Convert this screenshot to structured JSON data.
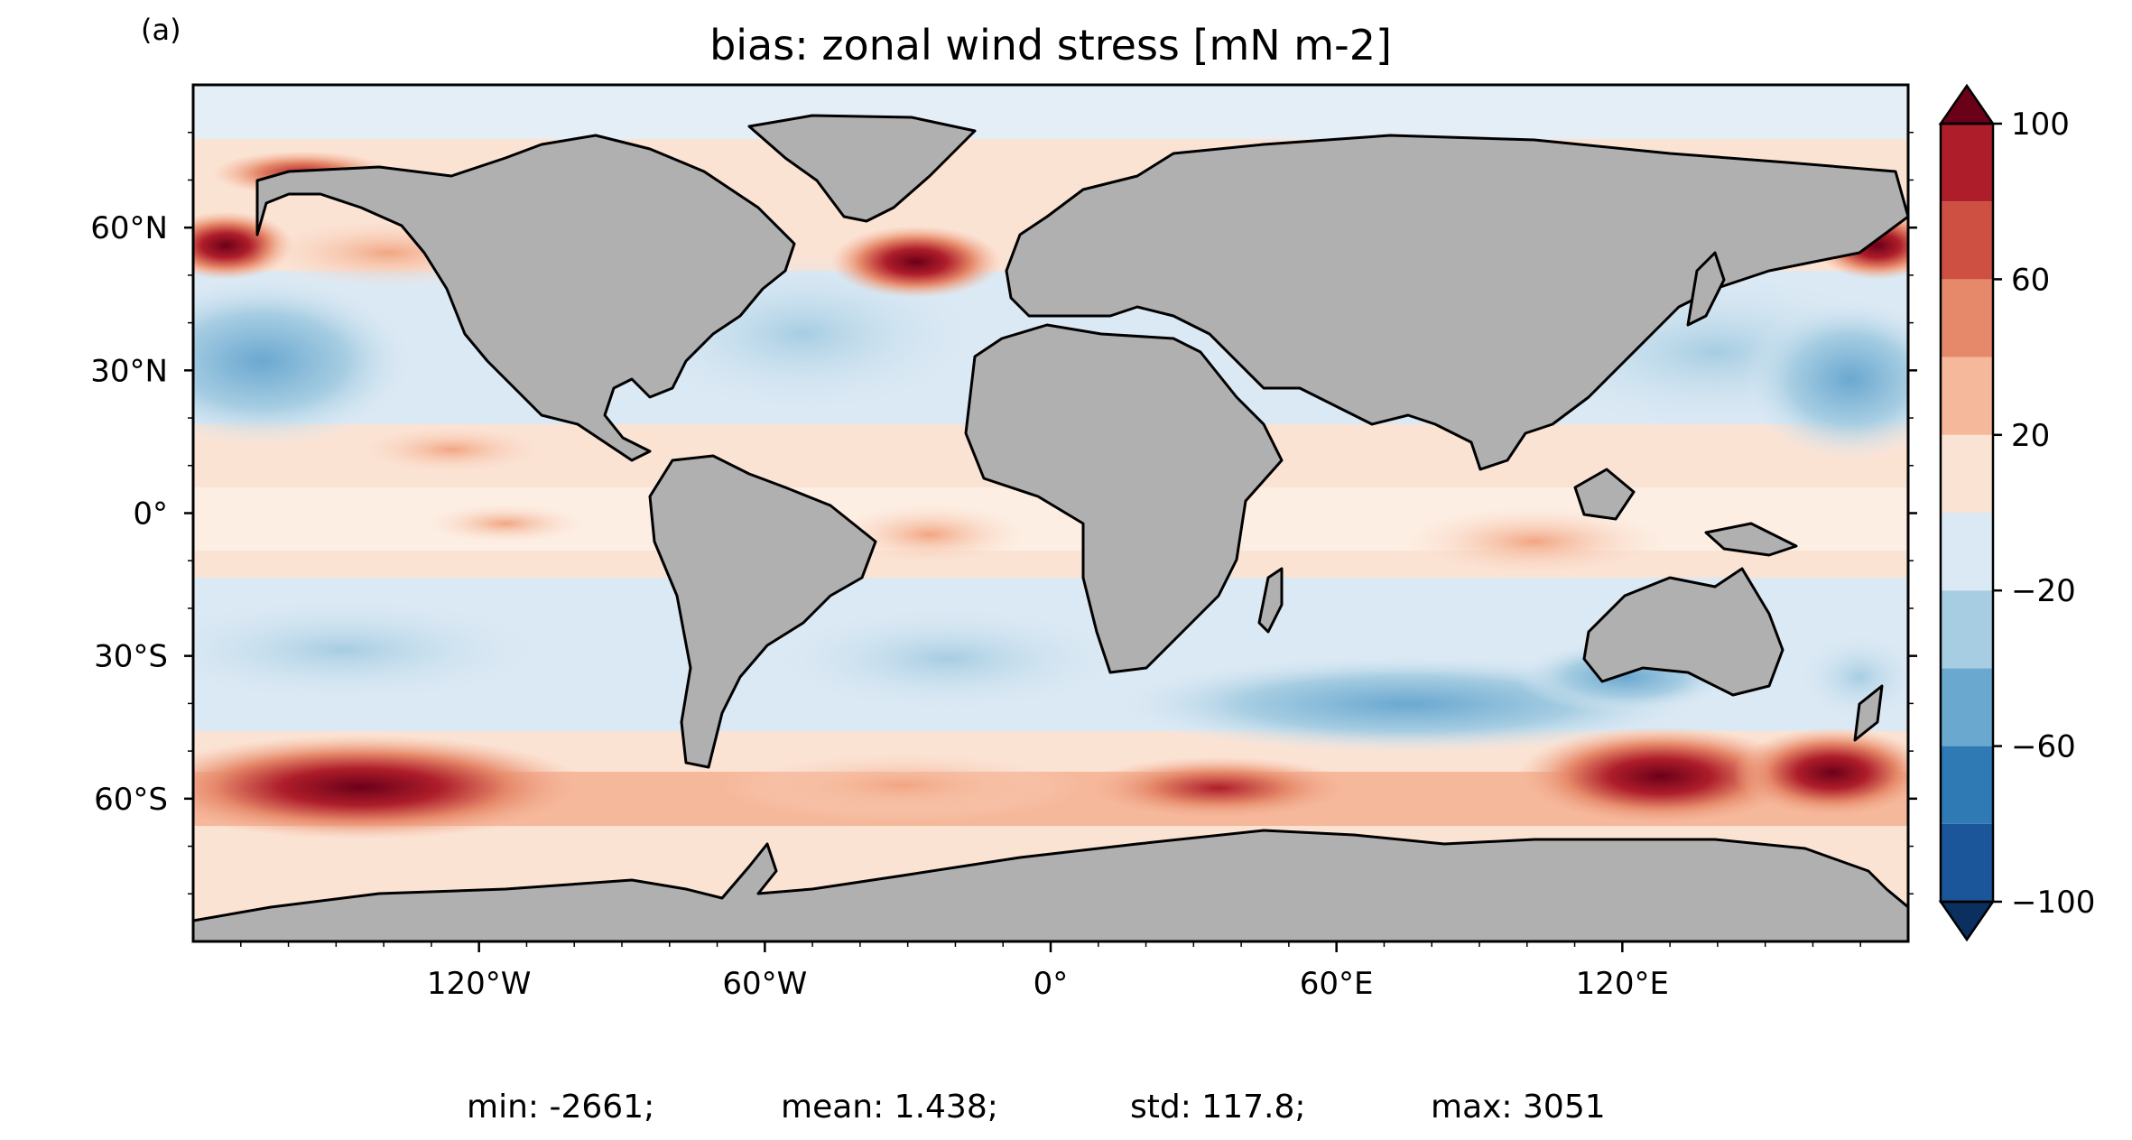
{
  "panel_label": "(a)",
  "title": "bias: zonal wind stress [mN m-2]",
  "stats": {
    "min": "min: -2661;",
    "mean": "mean: 1.438;",
    "std": "std: 117.8;",
    "max": "max: 3051"
  },
  "lat_ticks": [
    {
      "value": 60,
      "label": "60°N"
    },
    {
      "value": 30,
      "label": "30°N"
    },
    {
      "value": 0,
      "label": "0°"
    },
    {
      "value": -30,
      "label": "30°S"
    },
    {
      "value": -60,
      "label": "60°S"
    }
  ],
  "lon_ticks": [
    {
      "value": -120,
      "label": "120°W"
    },
    {
      "value": -60,
      "label": "60°W"
    },
    {
      "value": 0,
      "label": "0°"
    },
    {
      "value": 60,
      "label": "60°E"
    },
    {
      "value": 120,
      "label": "120°E"
    }
  ],
  "colorbar": {
    "levels": [
      -100,
      -80,
      -60,
      -40,
      -20,
      0,
      20,
      40,
      60,
      80,
      100
    ],
    "tick_labels": [
      {
        "value": 100,
        "label": "100"
      },
      {
        "value": 60,
        "label": "60"
      },
      {
        "value": 20,
        "label": "20"
      },
      {
        "value": -20,
        "label": "−20"
      },
      {
        "value": -60,
        "label": "−60"
      },
      {
        "value": -100,
        "label": "−100"
      }
    ],
    "colors": [
      "#1a5699",
      "#2f79b5",
      "#6ba8d0",
      "#a6cde2",
      "#dbe9f4",
      "#fbe3d4",
      "#f6b89b",
      "#e6896a",
      "#cd5042",
      "#ae1d2a"
    ],
    "under_color": "#0b2f5f",
    "over_color": "#6b0019",
    "extend": "both"
  },
  "map": {
    "lon_range": [
      -180,
      180
    ],
    "lat_range": [
      -90,
      90
    ],
    "land_color": "#b0b0b0",
    "coast_color": "#000000",
    "ocean_base_color": "#fbe3d4"
  }
}
